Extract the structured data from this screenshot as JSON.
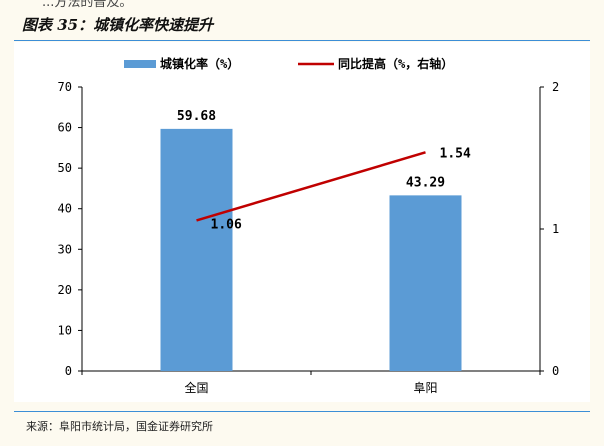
{
  "header": {
    "cut_text": "...方法的普及。",
    "figure_title": "图表 35：城镇化率快速提升"
  },
  "footer": {
    "source": "来源：阜阳市统计局，国金证券研究所"
  },
  "chart_data": {
    "type": "bar",
    "categories": [
      "全国",
      "阜阳"
    ],
    "series": [
      {
        "name": "城镇化率（%）",
        "type": "bar",
        "axis": "left",
        "values": [
          59.68,
          43.29
        ],
        "color": "#5b9bd5"
      },
      {
        "name": "同比提高（%，右轴）",
        "type": "line",
        "axis": "right",
        "values": [
          1.06,
          1.54
        ],
        "color": "#c00000"
      }
    ],
    "data_labels": {
      "bar": [
        "59.68",
        "43.29"
      ],
      "line": [
        "1.06",
        "1.54"
      ]
    },
    "y_left": {
      "min": 0,
      "max": 70,
      "ticks": [
        0,
        10,
        20,
        30,
        40,
        50,
        60,
        70
      ]
    },
    "y_right": {
      "min": 0,
      "max": 2,
      "ticks": [
        0,
        1,
        2
      ]
    },
    "title": "",
    "xlabel": "",
    "ylabel": "",
    "legend_position": "top",
    "grid": false
  }
}
